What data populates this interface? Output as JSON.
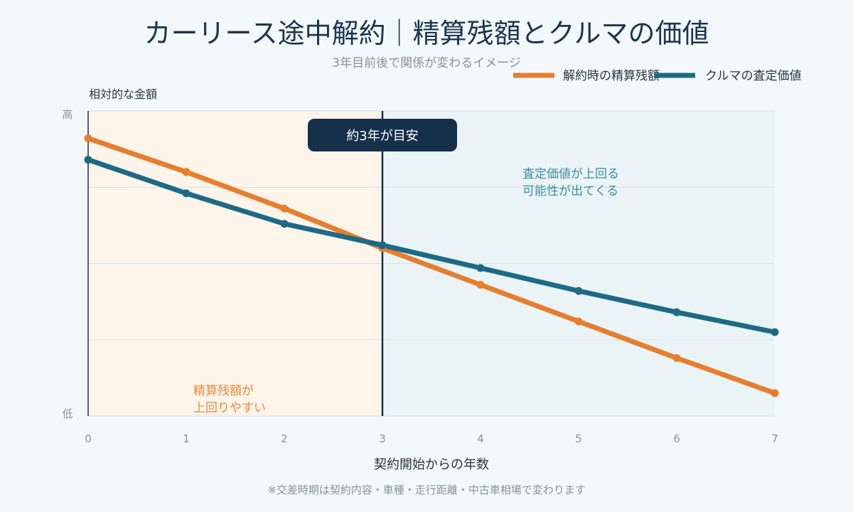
{
  "title": "カーリース途中解約｜精算残額とクルマの価値",
  "subtitle": "3年目前後で関係が変わるイメージ",
  "footnote": "※交差時期は契約内容・車種・走行距離・中古車相場で変わります",
  "colors": {
    "background": "#f3f8fb",
    "orange": "#e67e2e",
    "blue": "#1d6a85",
    "navy": "#17304a",
    "left_region": "#fdf4ea",
    "right_region": "#eaf4f7",
    "grid": "#d6e1e8"
  },
  "chart_data": {
    "type": "line",
    "title": "カーリース途中解約｜精算残額とクルマの価値",
    "subtitle": "3年目前後で関係が変わるイメージ",
    "xlabel": "契約開始からの年数",
    "ylabel": "相対的な金額",
    "ytick_labels": {
      "high": "高",
      "low": "低"
    },
    "x": [
      0,
      1,
      2,
      3,
      4,
      5,
      6,
      7
    ],
    "xlim": [
      0,
      7
    ],
    "ylim": [
      0,
      100
    ],
    "grid": true,
    "legend_position": "top-right",
    "series": [
      {
        "name": "解約時の精算残額",
        "color": "#e67e2e",
        "values": [
          91,
          80,
          68,
          55,
          43,
          31,
          19,
          7.5
        ]
      },
      {
        "name": "クルマの査定価値",
        "color": "#1d6a85",
        "values": [
          84,
          73,
          63,
          56,
          48.5,
          41,
          34,
          27.5
        ]
      }
    ],
    "crossover": {
      "x": 3,
      "label": "約3年が目安"
    },
    "annotations": {
      "right_region": [
        "査定価値が上回る",
        "可能性が出てくる"
      ],
      "left_region": [
        "精算残額が",
        "上回りやすい"
      ]
    }
  }
}
